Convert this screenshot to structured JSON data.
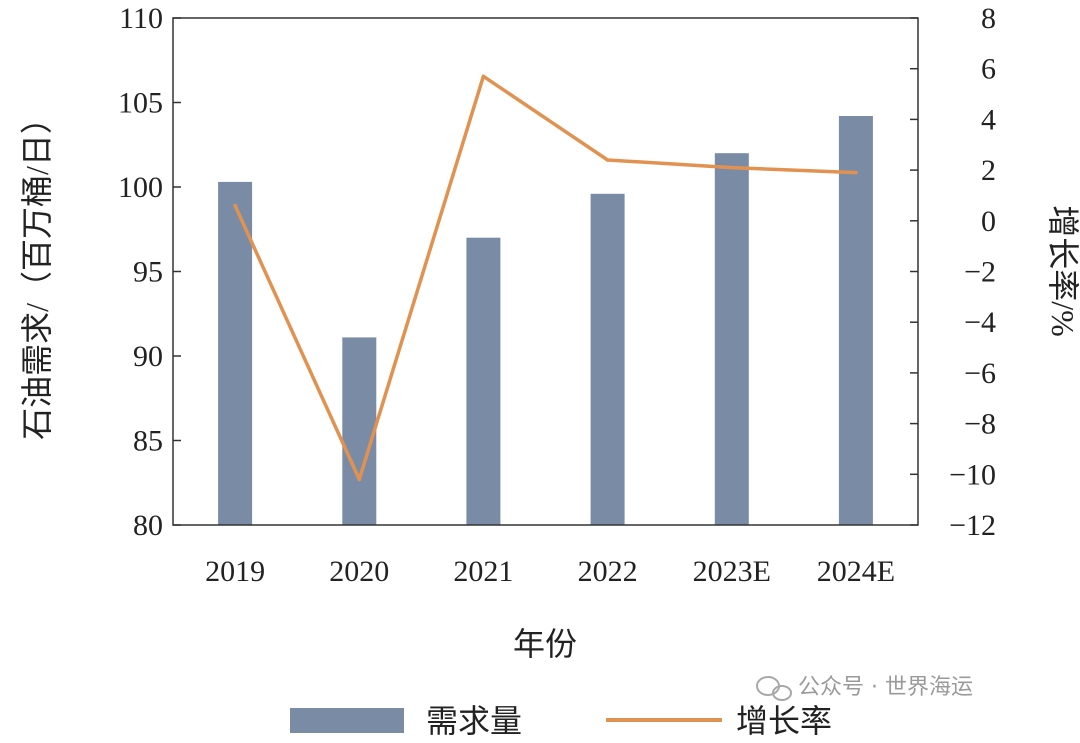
{
  "chart_data": {
    "type": "bar",
    "categories": [
      "2019",
      "2020",
      "2021",
      "2022",
      "2023E",
      "2024E"
    ],
    "series": [
      {
        "name": "需求量",
        "type": "bar",
        "axis": "left",
        "color": "#7a8ba6",
        "values": [
          100.3,
          91.1,
          97.0,
          99.6,
          102.0,
          104.2
        ]
      },
      {
        "name": "增长率",
        "type": "line",
        "axis": "right",
        "color": "#e29250",
        "values": [
          0.6,
          -10.2,
          5.7,
          2.4,
          2.1,
          1.9
        ]
      }
    ],
    "xlabel": "年份",
    "ylabel": "石油需求/（百万桶/日）",
    "y2label": "增长率/%",
    "ylim": [
      80,
      110
    ],
    "y2lim": [
      -12,
      8
    ],
    "yticks": [
      80,
      85,
      90,
      95,
      100,
      105,
      110
    ],
    "y2ticks": [
      -12,
      -10,
      -8,
      -6,
      -4,
      -2,
      0,
      2,
      4,
      6,
      8
    ],
    "grid": false,
    "legend": "bottom"
  },
  "watermark": {
    "text": "公众号 · 世界海运"
  }
}
